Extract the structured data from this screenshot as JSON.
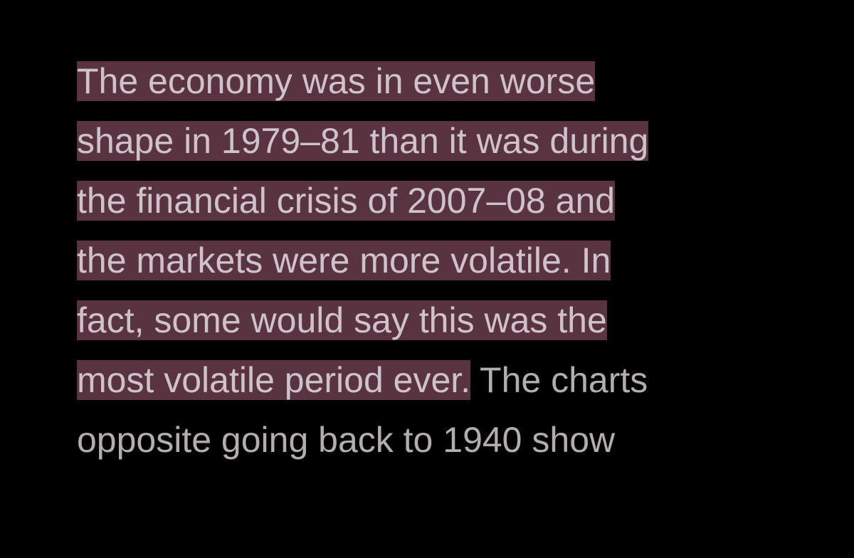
{
  "colors": {
    "background": "#000000",
    "highlight": "#5a3341",
    "highlighted_text": "#cfc3cb",
    "text": "#b3acb1"
  },
  "passage": {
    "lines": [
      {
        "highlighted": "The economy was in even worse",
        "plain": ""
      },
      {
        "highlighted": "shape in 1979–81 than it was during",
        "plain": ""
      },
      {
        "highlighted": "the financial crisis of 2007–08 and",
        "plain": ""
      },
      {
        "highlighted": "the markets were more volatile. In",
        "plain": ""
      },
      {
        "highlighted": "fact, some would say this was the",
        "plain": ""
      },
      {
        "highlighted": "most volatile period ever.",
        "plain": " The charts"
      },
      {
        "highlighted": "",
        "plain": "opposite going back to 1940 show"
      }
    ]
  }
}
